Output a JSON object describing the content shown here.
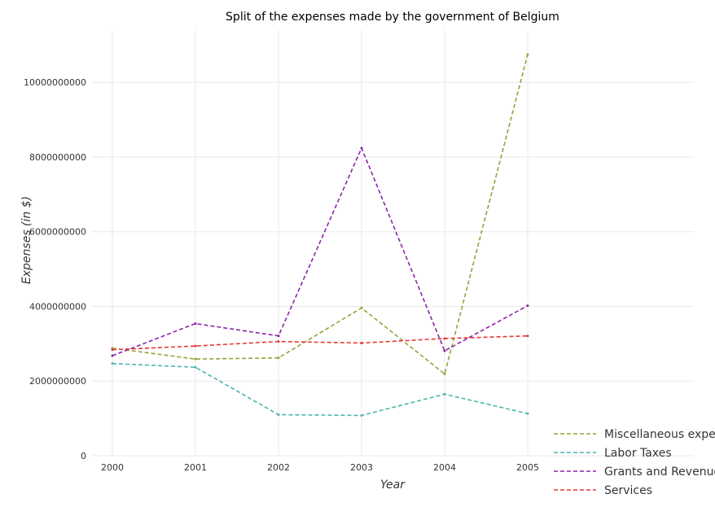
{
  "chart_data": {
    "type": "line",
    "title": "Split of the expenses made by the government of Belgium",
    "xlabel": "Year",
    "ylabel": "Expenses (in $)",
    "categories": [
      "2000",
      "2001",
      "2002",
      "2003",
      "2004",
      "2005"
    ],
    "ylim": [
      0,
      11400000000
    ],
    "yticks": [
      0,
      2000000000,
      4000000000,
      6000000000,
      8000000000,
      10000000000
    ],
    "ytick_labels": [
      "0",
      "2000000000",
      "4000000000",
      "6000000000",
      "8000000000",
      "10000000000"
    ],
    "grid": true,
    "legend_position": "bottom-right",
    "series": [
      {
        "name": "Miscellaneous expenses",
        "color": "#9aa03a",
        "values": [
          2880000000,
          2590000000,
          2620000000,
          3960000000,
          2190000000,
          10750000000
        ]
      },
      {
        "name": "Labor Taxes",
        "color": "#4db6ac",
        "values": [
          2470000000,
          2370000000,
          1100000000,
          1080000000,
          1650000000,
          1130000000
        ]
      },
      {
        "name": "Grants and Revenue",
        "color": "#8e24aa",
        "values": [
          2680000000,
          3540000000,
          3210000000,
          8240000000,
          2810000000,
          4020000000
        ]
      },
      {
        "name": "Services",
        "color": "#e53935",
        "values": [
          2840000000,
          2940000000,
          3060000000,
          3020000000,
          3140000000,
          3210000000
        ]
      }
    ]
  }
}
